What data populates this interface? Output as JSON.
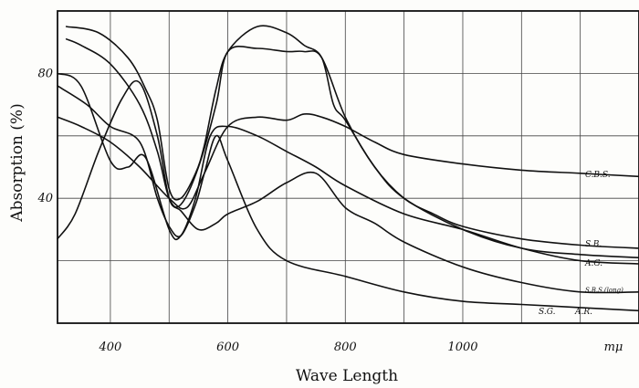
{
  "chart_data": {
    "type": "line",
    "xlabel": "Wave Length",
    "ylabel": "Absorption (%)",
    "x_unit_label": "mμ",
    "xlim": [
      310,
      1300
    ],
    "ylim": [
      0,
      100
    ],
    "x_ticks": [
      400,
      600,
      800,
      1000
    ],
    "y_ticks": [
      40,
      80
    ],
    "grid": true,
    "series": [
      {
        "name": "C.B.S.",
        "points": [
          [
            310,
            66
          ],
          [
            350,
            63
          ],
          [
            400,
            58
          ],
          [
            450,
            50
          ],
          [
            500,
            40
          ],
          [
            530,
            37
          ],
          [
            560,
            48
          ],
          [
            600,
            63
          ],
          [
            650,
            66
          ],
          [
            700,
            65
          ],
          [
            730,
            67
          ],
          [
            760,
            66
          ],
          [
            800,
            63
          ],
          [
            850,
            58
          ],
          [
            900,
            54
          ],
          [
            1000,
            51
          ],
          [
            1100,
            49
          ],
          [
            1200,
            48
          ],
          [
            1300,
            47
          ]
        ]
      },
      {
        "name": "S.B.",
        "points": [
          [
            325,
            91
          ],
          [
            350,
            89
          ],
          [
            400,
            83
          ],
          [
            450,
            70
          ],
          [
            480,
            55
          ],
          [
            500,
            40
          ],
          [
            520,
            38
          ],
          [
            550,
            50
          ],
          [
            580,
            70
          ],
          [
            600,
            87
          ],
          [
            650,
            88
          ],
          [
            700,
            87
          ],
          [
            730,
            87
          ],
          [
            760,
            85
          ],
          [
            800,
            66
          ],
          [
            850,
            50
          ],
          [
            900,
            40
          ],
          [
            950,
            35
          ],
          [
            1000,
            31
          ],
          [
            1100,
            27
          ],
          [
            1200,
            25
          ],
          [
            1300,
            24
          ]
        ]
      },
      {
        "name": "A.G.",
        "points": [
          [
            325,
            95
          ],
          [
            380,
            93
          ],
          [
            430,
            85
          ],
          [
            460,
            75
          ],
          [
            480,
            65
          ],
          [
            500,
            43
          ],
          [
            520,
            40
          ],
          [
            545,
            48
          ],
          [
            560,
            57
          ],
          [
            580,
            75
          ],
          [
            600,
            87
          ],
          [
            650,
            95
          ],
          [
            700,
            93
          ],
          [
            730,
            89
          ],
          [
            760,
            85
          ],
          [
            780,
            70
          ],
          [
            800,
            65
          ],
          [
            850,
            50
          ],
          [
            900,
            40
          ],
          [
            1000,
            30
          ],
          [
            1100,
            24
          ],
          [
            1200,
            22
          ],
          [
            1300,
            21
          ]
        ]
      },
      {
        "name": "S.B.S.(long)",
        "points": [
          [
            310,
            80
          ],
          [
            350,
            76
          ],
          [
            400,
            52
          ],
          [
            430,
            50
          ],
          [
            460,
            53
          ],
          [
            500,
            30
          ],
          [
            520,
            28
          ],
          [
            545,
            40
          ],
          [
            570,
            60
          ],
          [
            600,
            63
          ],
          [
            650,
            60
          ],
          [
            700,
            55
          ],
          [
            750,
            50
          ],
          [
            800,
            44
          ],
          [
            900,
            35
          ],
          [
            1000,
            30
          ],
          [
            1100,
            24
          ],
          [
            1200,
            20
          ],
          [
            1300,
            19
          ]
        ]
      },
      {
        "name": "S.G.",
        "points": [
          [
            310,
            76
          ],
          [
            360,
            70
          ],
          [
            400,
            63
          ],
          [
            450,
            58
          ],
          [
            480,
            40
          ],
          [
            500,
            31
          ],
          [
            520,
            28
          ],
          [
            545,
            38
          ],
          [
            560,
            48
          ],
          [
            580,
            60
          ],
          [
            600,
            52
          ],
          [
            650,
            30
          ],
          [
            700,
            20
          ],
          [
            800,
            15
          ],
          [
            900,
            10
          ],
          [
            1000,
            7
          ],
          [
            1100,
            6
          ],
          [
            1200,
            5
          ],
          [
            1300,
            4
          ]
        ]
      },
      {
        "name": "A.R.",
        "points": [
          [
            310,
            27
          ],
          [
            340,
            35
          ],
          [
            380,
            55
          ],
          [
            420,
            72
          ],
          [
            450,
            77
          ],
          [
            480,
            60
          ],
          [
            500,
            40
          ],
          [
            520,
            36
          ],
          [
            550,
            30
          ],
          [
            580,
            32
          ],
          [
            600,
            35
          ],
          [
            650,
            39
          ],
          [
            700,
            45
          ],
          [
            750,
            48
          ],
          [
            800,
            37
          ],
          [
            850,
            32
          ],
          [
            900,
            26
          ],
          [
            1000,
            18
          ],
          [
            1100,
            13
          ],
          [
            1200,
            10
          ],
          [
            1300,
            10
          ]
        ]
      }
    ],
    "labels": [
      "C.B.S.",
      "S.B.",
      "A.G.",
      "S.B.S.(long)",
      "S.G.",
      "A.R."
    ]
  }
}
